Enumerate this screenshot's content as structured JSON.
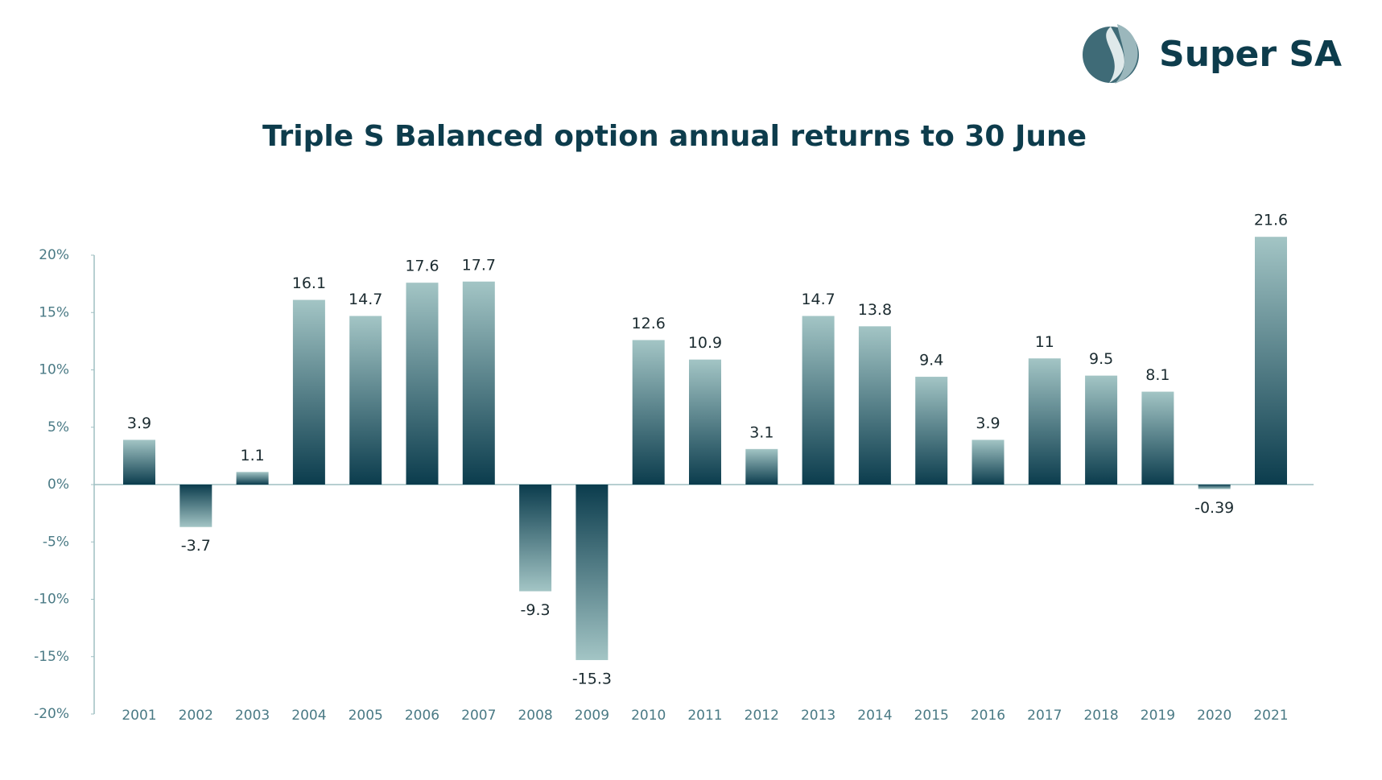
{
  "brand": "Super SA",
  "chart_data": {
    "type": "bar",
    "title": "Triple S Balanced option annual returns to 30 June",
    "categories": [
      "2001",
      "2002",
      "2003",
      "2004",
      "2005",
      "2006",
      "2007",
      "2008",
      "2009",
      "2010",
      "2011",
      "2012",
      "2013",
      "2014",
      "2015",
      "2016",
      "2017",
      "2018",
      "2019",
      "2020",
      "2021"
    ],
    "values": [
      3.9,
      -3.7,
      1.1,
      16.1,
      14.7,
      17.6,
      17.7,
      -9.3,
      -15.3,
      12.6,
      10.9,
      3.1,
      14.7,
      13.8,
      9.4,
      3.9,
      11,
      9.5,
      8.1,
      -0.39,
      21.6
    ],
    "gradient": [
      "#0b3c4d",
      "#a3c5c5"
    ],
    "ylim": [
      -20,
      20
    ],
    "yticks": [
      {
        "value": -20,
        "label": "-20%"
      },
      {
        "value": -15,
        "label": "-15%"
      },
      {
        "value": -10,
        "label": "-10%"
      },
      {
        "value": -5,
        "label": "-5%"
      },
      {
        "value": 0,
        "label": "0%"
      },
      {
        "value": 5,
        "label": "5%"
      },
      {
        "value": 10,
        "label": "10%"
      },
      {
        "value": 15,
        "label": "15%"
      },
      {
        "value": 20,
        "label": "20%"
      }
    ],
    "grid": false
  }
}
